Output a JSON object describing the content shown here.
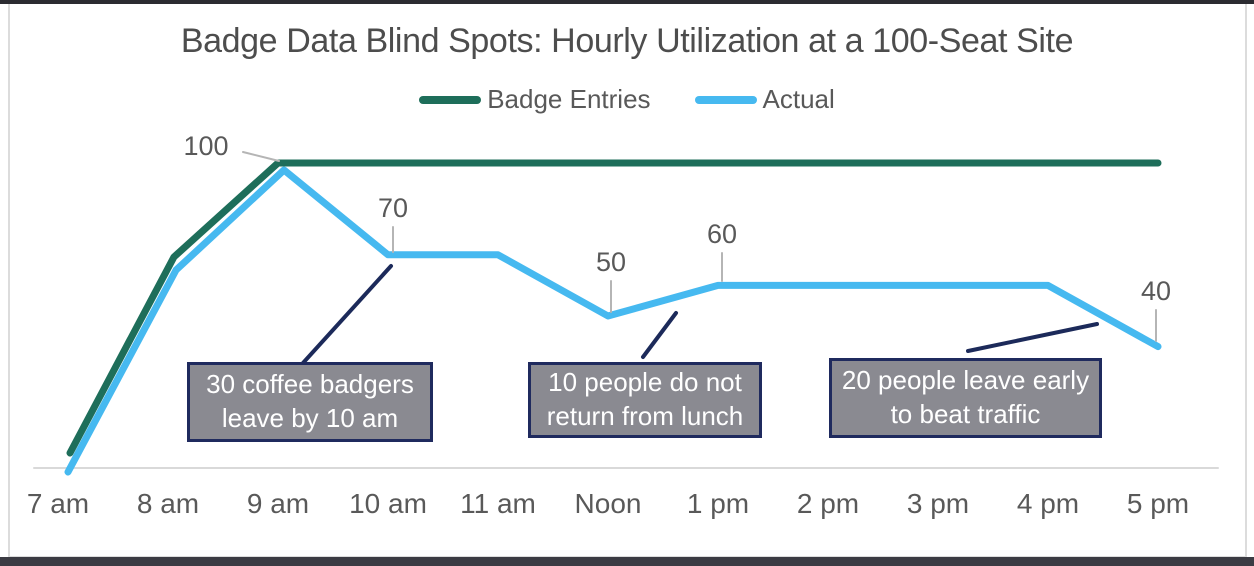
{
  "title": "Badge Data Blind Spots: Hourly Utilization at a 100-Seat Site",
  "legend": {
    "items": [
      {
        "label": "Badge Entries",
        "color": "#1e6e5a"
      },
      {
        "label": "Actual",
        "color": "#46b9f0"
      }
    ]
  },
  "chart_data": {
    "type": "line",
    "title": "Badge Data Blind Spots: Hourly Utilization at a 100-Seat Site",
    "categories": [
      "7 am",
      "8 am",
      "9 am",
      "10 am",
      "11 am",
      "Noon",
      "1 pm",
      "2 pm",
      "3 pm",
      "4 pm",
      "5 pm"
    ],
    "series": [
      {
        "name": "Badge Entries",
        "color": "#1e6e5a",
        "values": [
          0,
          68,
          100,
          100,
          100,
          100,
          100,
          100,
          100,
          100,
          100
        ]
      },
      {
        "name": "Actual",
        "color": "#46b9f0",
        "values": [
          0,
          65,
          100,
          70,
          70,
          50,
          60,
          60,
          60,
          60,
          40
        ]
      }
    ],
    "point_labels": [
      {
        "series": "Actual",
        "category": "9 am",
        "text": "100"
      },
      {
        "series": "Actual",
        "category": "10 am",
        "text": "70"
      },
      {
        "series": "Actual",
        "category": "Noon",
        "text": "50"
      },
      {
        "series": "Actual",
        "category": "1 pm",
        "text": "60"
      },
      {
        "series": "Actual",
        "category": "5 pm",
        "text": "40"
      }
    ],
    "xlabel": "",
    "ylabel": "",
    "ylim": [
      0,
      100
    ],
    "grid": false,
    "legend_position": "top"
  },
  "annotations": [
    {
      "text": "30 coffee badgers\nleave by 10 am"
    },
    {
      "text": "10 people do not\nreturn from lunch"
    },
    {
      "text": "20 people leave early\nto beat traffic"
    }
  ],
  "colors": {
    "badge_entries_line": "#1e6e5a",
    "actual_line": "#46b9f0",
    "annotation_fill": "#8a8a91",
    "annotation_border": "#1f2a5e",
    "leader_navy": "#1c2a5a",
    "leader_gray": "#b5b5b5",
    "axis_line": "#d9d9d9",
    "text_gray": "#595959"
  }
}
